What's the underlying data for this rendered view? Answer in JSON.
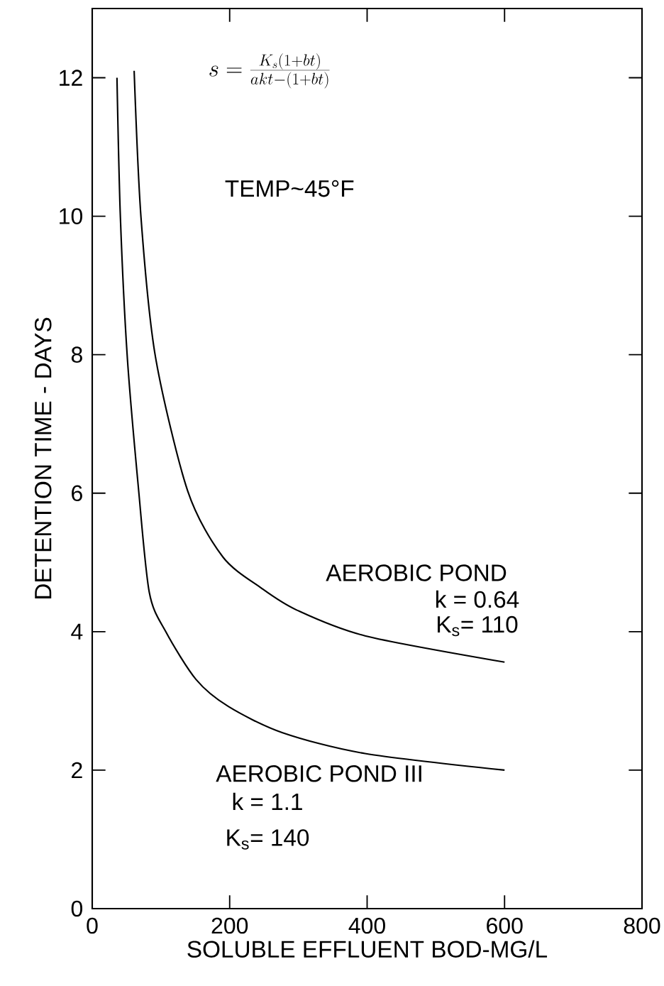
{
  "chart_data": {
    "type": "line",
    "xlabel": "SOLUBLE EFFLUENT BOD-MG/L",
    "ylabel": "DETENTION TIME - DAYS",
    "xlim": [
      0,
      800
    ],
    "xticks": [
      0,
      200,
      400,
      600,
      800
    ],
    "ylim": [
      0,
      13
    ],
    "yticks": [
      0,
      2,
      4,
      6,
      8,
      10,
      12
    ],
    "grid": false,
    "legend": false,
    "marker": "none",
    "line_style": "solid",
    "series": [
      {
        "name": "AEROBIC POND",
        "color": "#000000",
        "x": [
          61,
          71,
          92,
          139,
          190,
          246,
          298,
          397,
          600
        ],
        "values": [
          12.1,
          9.98,
          7.97,
          6.03,
          5.08,
          4.63,
          4.31,
          3.94,
          3.56
        ]
      },
      {
        "name": "AEROBIC POND III",
        "color": "#000000",
        "x": [
          36,
          41,
          51,
          67,
          83,
          107,
          151,
          198,
          277,
          397,
          600
        ],
        "values": [
          12.0,
          9.98,
          7.97,
          6.1,
          4.57,
          4.0,
          3.31,
          2.92,
          2.54,
          2.24,
          2.0
        ]
      }
    ],
    "annotations": [
      "s = \\frac{K_s(1+bt)}{akt-(1+bt)}",
      "TEMP~45°F",
      "k = 0.64",
      "K$_{s}$= 110",
      "k = 1.1",
      "K$_{s}$= 140"
    ]
  }
}
